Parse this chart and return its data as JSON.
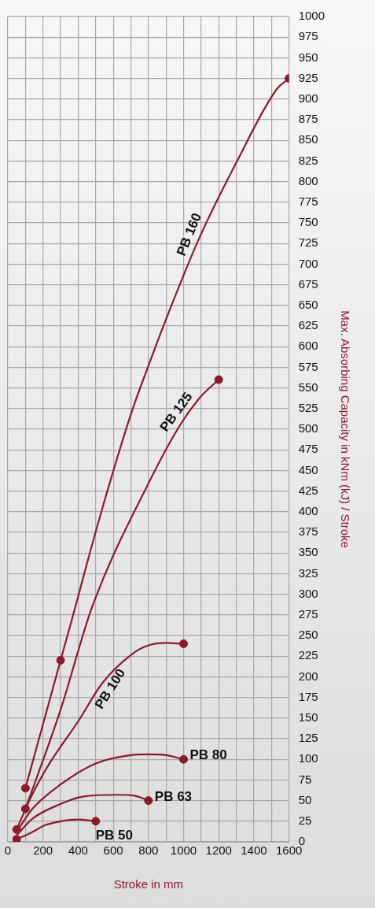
{
  "chart_data": {
    "type": "line",
    "xlabel": "Stroke in mm",
    "ylabel": "Max. Absorbing Capacity in kNm (kJ) / Stroke",
    "xlim": [
      0,
      1600
    ],
    "xticks": [
      0,
      {
        "value": 100,
        "label": null
      },
      200,
      {
        "value": 300,
        "label": null
      },
      400,
      {
        "value": 500,
        "label": null
      },
      600,
      {
        "value": 700,
        "label": null
      },
      800,
      {
        "value": 900,
        "label": null
      },
      1000,
      {
        "value": 1100,
        "label": null
      },
      1200,
      {
        "value": 1300,
        "label": null
      },
      1400,
      {
        "value": 1500,
        "label": null
      },
      1600
    ],
    "ylim": [
      0,
      1000
    ],
    "yticks": [
      0,
      25,
      50,
      75,
      100,
      125,
      150,
      175,
      200,
      225,
      250,
      275,
      300,
      325,
      350,
      375,
      400,
      425,
      450,
      475,
      500,
      525,
      550,
      575,
      600,
      625,
      650,
      675,
      700,
      725,
      750,
      775,
      800,
      825,
      850,
      875,
      900,
      925,
      950,
      975,
      1000
    ],
    "grid": true,
    "legend": false,
    "marker": "none",
    "line_style": "solid",
    "series": [
      {
        "name": "PB 50",
        "color": "#8b1a2b",
        "x": [
          50,
          140,
          210,
          300,
          400,
          500
        ],
        "values": [
          3,
          12,
          20,
          25,
          27,
          25
        ]
      },
      {
        "name": "PB 63",
        "color": "#8b1a2b",
        "x": [
          50,
          140,
          290,
          430,
          620,
          720,
          800
        ],
        "values": [
          8,
          28,
          45,
          55,
          57,
          56,
          50
        ]
      },
      {
        "name": "PB 80",
        "color": "#8b1a2b",
        "x": [
          50,
          140,
          290,
          500,
          700,
          800,
          900,
          1000
        ],
        "values": [
          12,
          40,
          68,
          95,
          105,
          106,
          105,
          100
        ]
      },
      {
        "name": "PB 100",
        "color": "#8b1a2b",
        "x": [
          50,
          140,
          240,
          400,
          540,
          710,
          800,
          900,
          1000
        ],
        "values": [
          15,
          58,
          96,
          146,
          193,
          228,
          238,
          241,
          240
        ]
      },
      {
        "name": "PB 125",
        "color": "#8b1a2b",
        "x": [
          100,
          300,
          480,
          790,
          980,
          1100,
          1200
        ],
        "values": [
          40,
          160,
          285,
          430,
          505,
          540,
          560
        ]
      },
      {
        "name": "PB 160",
        "color": "#8b1a2b",
        "x": [
          100,
          300,
          360,
          520,
          700,
          800,
          920,
          1090,
          1300,
          1530,
          1600
        ],
        "values": [
          65,
          220,
          266,
          391,
          518,
          577,
          644,
          732,
          823,
          912,
          925
        ]
      },
      {
        "type": "scatter",
        "marker": "circle",
        "color": "#8b1a2b",
        "x": [
          50,
          500,
          800,
          1000,
          50,
          1000,
          100,
          1200,
          100,
          300,
          1600
        ],
        "values": [
          3,
          25,
          50,
          100,
          15,
          240,
          40,
          560,
          65,
          220,
          925
        ]
      }
    ]
  }
}
